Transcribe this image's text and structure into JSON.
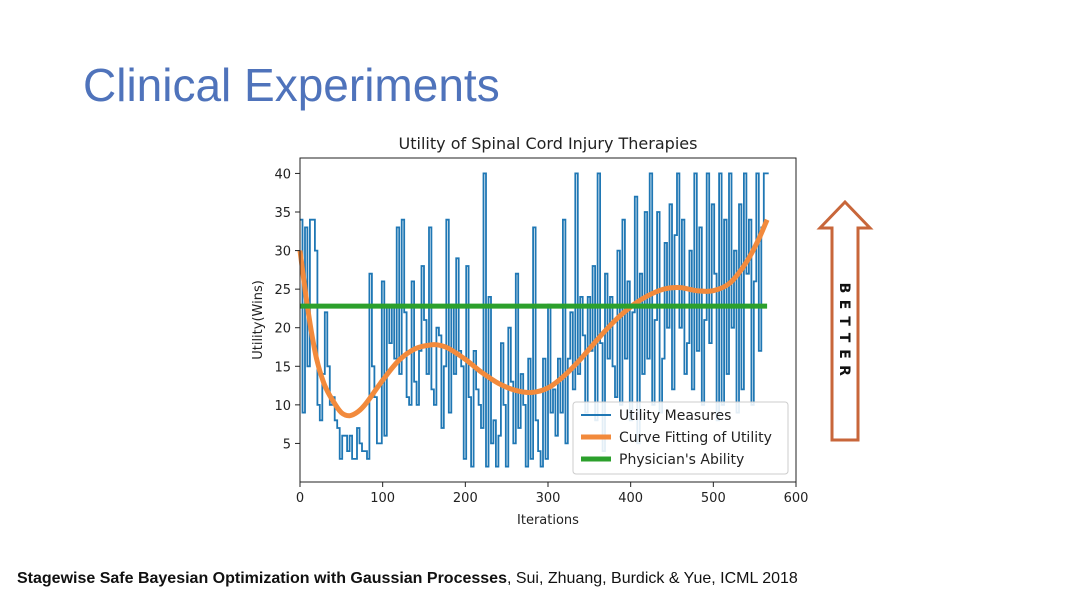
{
  "slide": {
    "title": "Clinical Experiments",
    "citation_bold": "Stagewise Safe Bayesian Optimization with Gaussian Processes",
    "citation_rest": ", Sui, Zhuang, Burdick & Yue, ICML 2018"
  },
  "annotation": {
    "arrow_text": "BETTER",
    "arrow_color": "#c8663a"
  },
  "chart_data": {
    "type": "line",
    "title": "Utility of Spinal Cord Injury Therapies",
    "xlabel": "Iterations",
    "ylabel": "Utility(Wins)",
    "xlim": [
      0,
      600
    ],
    "ylim": [
      0,
      42
    ],
    "xticks": [
      0,
      100,
      200,
      300,
      400,
      500,
      600
    ],
    "yticks": [
      5,
      10,
      15,
      20,
      25,
      30,
      35,
      40
    ],
    "legend_position": "lower-right",
    "series": [
      {
        "name": "Utility Measures",
        "style": "thin-line",
        "color": "#1f77b4",
        "x": [
          0,
          3,
          6,
          9,
          12,
          15,
          18,
          21,
          24,
          27,
          30,
          33,
          36,
          39,
          42,
          45,
          48,
          51,
          54,
          57,
          60,
          63,
          66,
          69,
          72,
          75,
          78,
          81,
          84,
          87,
          90,
          93,
          96,
          99,
          102,
          105,
          108,
          111,
          114,
          117,
          120,
          123,
          126,
          129,
          132,
          135,
          138,
          141,
          144,
          147,
          150,
          153,
          156,
          159,
          162,
          165,
          168,
          171,
          174,
          177,
          180,
          183,
          186,
          189,
          192,
          195,
          198,
          201,
          204,
          207,
          210,
          213,
          216,
          219,
          222,
          225,
          228,
          231,
          234,
          237,
          240,
          243,
          246,
          249,
          252,
          255,
          258,
          261,
          264,
          267,
          270,
          273,
          276,
          279,
          282,
          285,
          288,
          291,
          294,
          297,
          300,
          303,
          306,
          309,
          312,
          315,
          318,
          321,
          324,
          327,
          330,
          333,
          336,
          339,
          342,
          345,
          348,
          351,
          354,
          357,
          360,
          363,
          366,
          369,
          372,
          375,
          378,
          381,
          384,
          387,
          390,
          393,
          396,
          399,
          402,
          405,
          408,
          411,
          414,
          417,
          420,
          423,
          426,
          429,
          432,
          435,
          438,
          441,
          444,
          447,
          450,
          453,
          456,
          459,
          462,
          465,
          468,
          471,
          474,
          477,
          480,
          483,
          486,
          489,
          492,
          495,
          498,
          501,
          504,
          507,
          510,
          513,
          516,
          519,
          522,
          525,
          528,
          531,
          534,
          537,
          540,
          543,
          546,
          549,
          552,
          555,
          558,
          561,
          564,
          567
        ],
        "values": [
          34,
          9,
          33,
          15,
          34,
          34,
          30,
          10,
          8,
          14,
          22,
          15,
          10,
          11,
          8,
          7,
          3,
          6,
          6,
          4,
          6,
          3,
          3,
          7,
          5,
          4,
          4,
          3,
          27,
          15,
          11,
          5,
          5,
          26,
          6,
          23,
          18,
          23,
          16,
          33,
          14,
          34,
          22,
          11,
          10,
          26,
          13,
          10,
          17,
          28,
          21,
          14,
          33,
          12,
          10,
          20,
          19,
          7,
          15,
          34,
          9,
          23,
          14,
          29,
          17,
          15,
          3,
          28,
          11,
          2,
          17,
          12,
          10,
          7,
          40,
          2,
          24,
          5,
          8,
          2,
          6,
          18,
          10,
          2,
          20,
          13,
          5,
          27,
          7,
          14,
          10,
          2,
          16,
          3,
          33,
          8,
          4,
          2,
          16,
          3,
          23,
          9,
          12,
          6,
          16,
          9,
          34,
          5,
          16,
          22,
          12,
          40,
          14,
          24,
          19,
          9,
          24,
          17,
          28,
          8,
          40,
          18,
          4,
          27,
          16,
          24,
          15,
          11,
          30,
          10,
          34,
          16,
          26,
          8,
          22,
          37,
          5,
          27,
          14,
          35,
          16,
          40,
          10,
          21,
          35,
          9,
          16,
          31,
          20,
          36,
          12,
          32,
          40,
          20,
          34,
          14,
          18,
          30,
          12,
          40,
          17,
          33,
          10,
          21,
          40,
          18,
          36,
          27,
          8,
          40,
          10,
          34,
          14,
          40,
          20,
          30,
          9,
          36,
          12,
          40,
          27,
          34,
          10,
          26,
          40,
          17,
          33,
          40,
          40,
          40
        ]
      },
      {
        "name": "Curve Fitting of Utility",
        "style": "thick-line",
        "color": "#f28a3c",
        "x": [
          0,
          10,
          20,
          30,
          40,
          50,
          60,
          70,
          80,
          100,
          120,
          140,
          160,
          170,
          180,
          200,
          220,
          240,
          260,
          280,
          300,
          320,
          340,
          360,
          380,
          400,
          420,
          440,
          460,
          480,
          500,
          520,
          540,
          555,
          565
        ],
        "values": [
          30,
          22,
          16,
          12.5,
          10.5,
          9,
          8.6,
          9.1,
          10.2,
          13.2,
          15.8,
          17.3,
          17.8,
          17.7,
          17.3,
          15.9,
          14.2,
          12.8,
          11.9,
          11.6,
          12.2,
          13.8,
          16,
          18.5,
          20.8,
          22.7,
          24.1,
          25,
          25.2,
          24.8,
          24.8,
          25.8,
          28.5,
          31.5,
          34
        ]
      },
      {
        "name": "Physician's Ability",
        "style": "thick-line",
        "color": "#2ca02c",
        "x": [
          0,
          565
        ],
        "values": [
          22.8,
          22.8
        ]
      }
    ]
  }
}
